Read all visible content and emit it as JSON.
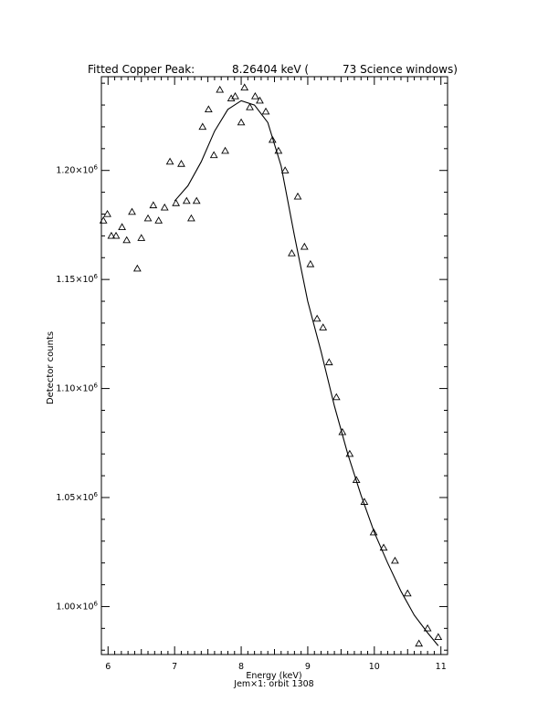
{
  "header": {
    "title_prefix": "Fitted Copper Peak:",
    "title_value": "8.26404 keV (",
    "title_windows": "73 Science windows)"
  },
  "chart_data": {
    "type": "scatter",
    "xlabel": "Energy (keV)",
    "ylabel": "Detector counts",
    "footer": "Jem×1: orbit 1308",
    "xlim": [
      5.9,
      11.1
    ],
    "ylim": [
      978000,
      1243000
    ],
    "x_ticks": [
      6,
      7,
      8,
      9,
      10,
      11
    ],
    "x_tick_labels": [
      "6",
      "7",
      "8",
      "9",
      "10",
      "11"
    ],
    "y_ticks": [
      1000000,
      1050000,
      1100000,
      1150000,
      1200000
    ],
    "y_tick_labels": [
      {
        "mantissa": "1.00×10",
        "exp": "6"
      },
      {
        "mantissa": "1.05×10",
        "exp": "6"
      },
      {
        "mantissa": "1.10×10",
        "exp": "6"
      },
      {
        "mantissa": "1.15×10",
        "exp": "6"
      },
      {
        "mantissa": "1.20×10",
        "exp": "6"
      }
    ],
    "grid": false,
    "legend": "none",
    "series": [
      {
        "marker": "triangle",
        "points": [
          [
            5.93,
            1177000
          ],
          [
            5.99,
            1180000
          ],
          [
            6.05,
            1170000
          ],
          [
            6.12,
            1170000
          ],
          [
            6.21,
            1174000
          ],
          [
            6.28,
            1168000
          ],
          [
            6.36,
            1181000
          ],
          [
            6.44,
            1155000
          ],
          [
            6.5,
            1169000
          ],
          [
            6.6,
            1178000
          ],
          [
            6.68,
            1184000
          ],
          [
            6.76,
            1177000
          ],
          [
            6.85,
            1183000
          ],
          [
            6.93,
            1204000
          ],
          [
            7.02,
            1185000
          ],
          [
            7.1,
            1203000
          ],
          [
            7.18,
            1186000
          ],
          [
            7.25,
            1178000
          ],
          [
            7.33,
            1186000
          ],
          [
            7.42,
            1220000
          ],
          [
            7.51,
            1228000
          ],
          [
            7.59,
            1207000
          ],
          [
            7.68,
            1237000
          ],
          [
            7.76,
            1209000
          ],
          [
            7.85,
            1233000
          ],
          [
            7.91,
            1234000
          ],
          [
            8.0,
            1222000
          ],
          [
            8.05,
            1238000
          ],
          [
            8.13,
            1229000
          ],
          [
            8.21,
            1234000
          ],
          [
            8.28,
            1232000
          ],
          [
            8.37,
            1227000
          ],
          [
            8.47,
            1214000
          ],
          [
            8.56,
            1209000
          ],
          [
            8.66,
            1200000
          ],
          [
            8.76,
            1162000
          ],
          [
            8.85,
            1188000
          ],
          [
            8.95,
            1165000
          ],
          [
            9.04,
            1157000
          ],
          [
            9.14,
            1132000
          ],
          [
            9.23,
            1128000
          ],
          [
            9.32,
            1112000
          ],
          [
            9.43,
            1096000
          ],
          [
            9.52,
            1080000
          ],
          [
            9.63,
            1070000
          ],
          [
            9.73,
            1058000
          ],
          [
            9.85,
            1048000
          ],
          [
            9.99,
            1034000
          ],
          [
            10.14,
            1027000
          ],
          [
            10.31,
            1021000
          ],
          [
            10.5,
            1006000
          ],
          [
            10.67,
            983000
          ],
          [
            10.8,
            990000
          ],
          [
            10.96,
            986000
          ]
        ]
      },
      {
        "name": "",
        "type": "line",
        "points": [
          [
            7.0,
            1186000
          ],
          [
            7.2,
            1193000
          ],
          [
            7.4,
            1204000
          ],
          [
            7.6,
            1218000
          ],
          [
            7.8,
            1228000
          ],
          [
            8.0,
            1232000
          ],
          [
            8.2,
            1230000
          ],
          [
            8.4,
            1222000
          ],
          [
            8.6,
            1202000
          ],
          [
            8.8,
            1170000
          ],
          [
            9.0,
            1140000
          ],
          [
            9.2,
            1117000
          ],
          [
            9.4,
            1092000
          ],
          [
            9.6,
            1070000
          ],
          [
            9.8,
            1051000
          ],
          [
            10.0,
            1034000
          ],
          [
            10.2,
            1020000
          ],
          [
            10.4,
            1007000
          ],
          [
            10.6,
            996000
          ],
          [
            10.8,
            988000
          ],
          [
            10.96,
            982000
          ]
        ]
      }
    ]
  }
}
